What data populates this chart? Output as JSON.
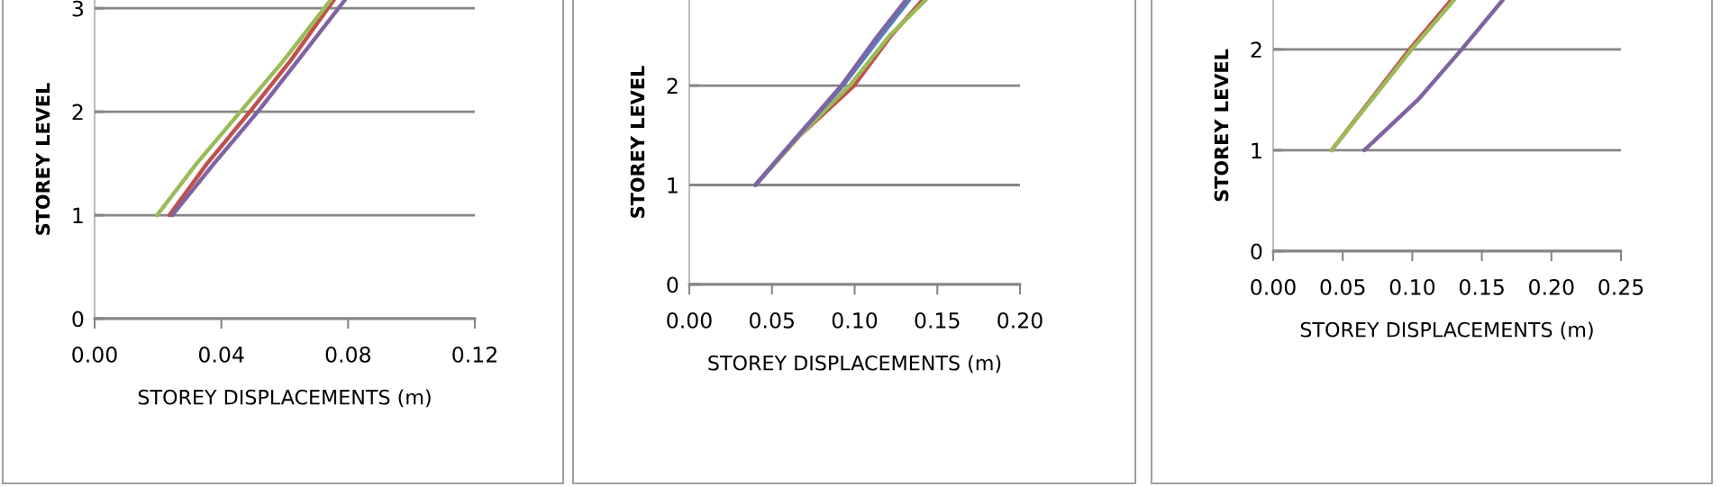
{
  "chart_data": [
    {
      "type": "line",
      "xlabel": "STOREY DISPLACEMENTS (m)",
      "ylabel": "STOREY LEVEL",
      "xlim": [
        0,
        0.12
      ],
      "xticks": [
        {
          "value": 0,
          "label": "0.00"
        },
        {
          "value": 0.04,
          "label": "0.04"
        },
        {
          "value": 0.08,
          "label": "0.08"
        },
        {
          "value": 0.12,
          "label": "0.12"
        }
      ],
      "ylim": [
        0,
        3.08
      ],
      "yticks": [
        0,
        1,
        2,
        3
      ],
      "grid": "y",
      "legend": false,
      "marker": "none",
      "line_style": "solid",
      "series": [
        {
          "color": "#c0504d",
          "x": [
            0.0236,
            0.0355,
            0.049,
            0.062,
            0.0755
          ],
          "values": [
            1,
            1.5,
            2,
            2.5,
            3.08
          ]
        },
        {
          "color": "#9bbb59",
          "x": [
            0.0197,
            0.0322,
            0.046,
            0.0598,
            0.0745
          ],
          "values": [
            1,
            1.5,
            2,
            2.5,
            3.08
          ]
        },
        {
          "color": "#8064a2",
          "x": [
            0.0245,
            0.0377,
            0.0515,
            0.0643,
            0.079
          ],
          "values": [
            1,
            1.5,
            2,
            2.5,
            3.08
          ]
        }
      ]
    },
    {
      "type": "line",
      "xlabel": "STOREY DISPLACEMENTS (m)",
      "ylabel": "STOREY LEVEL",
      "xlim": [
        0,
        0.2
      ],
      "xticks": [
        {
          "value": 0,
          "label": "0.00"
        },
        {
          "value": 0.05,
          "label": "0.05"
        },
        {
          "value": 0.1,
          "label": "0.10"
        },
        {
          "value": 0.15,
          "label": "0.15"
        },
        {
          "value": 0.2,
          "label": "0.20"
        }
      ],
      "ylim": [
        0,
        2.86
      ],
      "yticks": [
        0,
        1,
        2
      ],
      "grid": "y",
      "legend": false,
      "marker": "none",
      "line_style": "solid",
      "series": [
        {
          "color": "#c0504d",
          "x": [
            0.04,
            0.067,
            0.0997,
            0.122,
            0.141
          ],
          "values": [
            1,
            1.5,
            2,
            2.5,
            2.86
          ]
        },
        {
          "color": "#9bbb59",
          "x": [
            0.04,
            0.067,
            0.097,
            0.121,
            0.143
          ],
          "values": [
            1,
            1.5,
            2,
            2.5,
            2.86
          ]
        },
        {
          "color": "#4f81bd",
          "x": [
            0.04,
            0.066,
            0.093,
            0.116,
            0.133
          ],
          "values": [
            1,
            1.5,
            2,
            2.5,
            2.86
          ]
        },
        {
          "color": "#8064a2",
          "x": [
            0.04,
            0.066,
            0.092,
            0.114,
            0.131
          ],
          "values": [
            1,
            1.5,
            2,
            2.5,
            2.86
          ]
        }
      ]
    },
    {
      "type": "line",
      "xlabel": "STOREY DISPLACEMENTS (m)",
      "ylabel": "STOREY LEVEL",
      "xlim": [
        0,
        0.25
      ],
      "xticks": [
        {
          "value": 0,
          "label": "0.00"
        },
        {
          "value": 0.05,
          "label": "0.05"
        },
        {
          "value": 0.1,
          "label": "0.10"
        },
        {
          "value": 0.15,
          "label": "0.15"
        },
        {
          "value": 0.2,
          "label": "0.20"
        },
        {
          "value": 0.25,
          "label": "0.25"
        }
      ],
      "ylim": [
        0,
        2.49
      ],
      "yticks": [
        0,
        1,
        2
      ],
      "grid": "y",
      "legend": false,
      "marker": "none",
      "line_style": "solid",
      "series": [
        {
          "color": "#c0504d",
          "x": [
            0.042,
            0.07,
            0.098,
            0.128
          ],
          "values": [
            1,
            1.5,
            2,
            2.49
          ]
        },
        {
          "color": "#9bbb59",
          "x": [
            0.042,
            0.0707,
            0.0995,
            0.13
          ],
          "values": [
            1,
            1.5,
            2,
            2.49
          ]
        },
        {
          "color": "#8064a2",
          "x": [
            0.0655,
            0.104,
            0.1355,
            0.165
          ],
          "values": [
            1,
            1.5,
            2,
            2.49
          ]
        }
      ]
    }
  ]
}
